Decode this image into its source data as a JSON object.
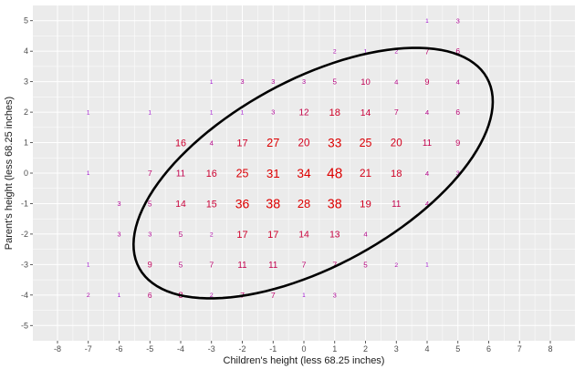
{
  "chart_data": {
    "type": "scatter",
    "subtype": "count-labels",
    "title": "",
    "xlabel": "Children's height (less 68.25 inches)",
    "ylabel": "Parent's height (less 68.25 inches)",
    "xlim": [
      -8.8,
      8.8
    ],
    "ylim": [
      -5.5,
      5.5
    ],
    "xticks": [
      -8,
      -7,
      -6,
      -5,
      -4,
      -3,
      -2,
      -1,
      0,
      1,
      2,
      3,
      4,
      5,
      6,
      7,
      8
    ],
    "yticks": [
      -5,
      -4,
      -3,
      -2,
      -1,
      0,
      1,
      2,
      3,
      4,
      5
    ],
    "grid": true,
    "panel_background": "#ebebeb",
    "grid_color": "#ffffff",
    "color_low": "#9900cc",
    "color_high": "#dd0000",
    "ellipse": {
      "center": [
        0.3,
        0.0
      ],
      "semi_axis_major": 6.45,
      "semi_axis_minor": 3.05,
      "angle_deg": 29,
      "color": "#000000"
    },
    "points": [
      {
        "x": 4,
        "y": 5,
        "n": 1
      },
      {
        "x": 5,
        "y": 5,
        "n": 3
      },
      {
        "x": 1,
        "y": 4,
        "n": 2
      },
      {
        "x": 2,
        "y": 4,
        "n": 1
      },
      {
        "x": 3,
        "y": 4,
        "n": 2
      },
      {
        "x": 4,
        "y": 4,
        "n": 7
      },
      {
        "x": 5,
        "y": 4,
        "n": 6
      },
      {
        "x": -3,
        "y": 3,
        "n": 1
      },
      {
        "x": -2,
        "y": 3,
        "n": 3
      },
      {
        "x": -1,
        "y": 3,
        "n": 3
      },
      {
        "x": 0,
        "y": 3,
        "n": 3
      },
      {
        "x": 1,
        "y": 3,
        "n": 5
      },
      {
        "x": 2,
        "y": 3,
        "n": 10
      },
      {
        "x": 3,
        "y": 3,
        "n": 4
      },
      {
        "x": 4,
        "y": 3,
        "n": 9
      },
      {
        "x": 5,
        "y": 3,
        "n": 4
      },
      {
        "x": -7,
        "y": 2,
        "n": 1
      },
      {
        "x": -5,
        "y": 2,
        "n": 1
      },
      {
        "x": -3,
        "y": 2,
        "n": 1
      },
      {
        "x": -2,
        "y": 2,
        "n": 1
      },
      {
        "x": -1,
        "y": 2,
        "n": 3
      },
      {
        "x": 0,
        "y": 2,
        "n": 12
      },
      {
        "x": 1,
        "y": 2,
        "n": 18
      },
      {
        "x": 2,
        "y": 2,
        "n": 14
      },
      {
        "x": 3,
        "y": 2,
        "n": 7
      },
      {
        "x": 4,
        "y": 2,
        "n": 4
      },
      {
        "x": 5,
        "y": 2,
        "n": 6
      },
      {
        "x": -4,
        "y": 1,
        "n": 16
      },
      {
        "x": -3,
        "y": 1,
        "n": 4
      },
      {
        "x": -2,
        "y": 1,
        "n": 17
      },
      {
        "x": -1,
        "y": 1,
        "n": 27
      },
      {
        "x": 0,
        "y": 1,
        "n": 20
      },
      {
        "x": 1,
        "y": 1,
        "n": 33
      },
      {
        "x": 2,
        "y": 1,
        "n": 25
      },
      {
        "x": 3,
        "y": 1,
        "n": 20
      },
      {
        "x": 4,
        "y": 1,
        "n": 11
      },
      {
        "x": 5,
        "y": 1,
        "n": 9
      },
      {
        "x": -7,
        "y": 0,
        "n": 1
      },
      {
        "x": -5,
        "y": 0,
        "n": 7
      },
      {
        "x": -4,
        "y": 0,
        "n": 11
      },
      {
        "x": -3,
        "y": 0,
        "n": 16
      },
      {
        "x": -2,
        "y": 0,
        "n": 25
      },
      {
        "x": -1,
        "y": 0,
        "n": 31
      },
      {
        "x": 0,
        "y": 0,
        "n": 34
      },
      {
        "x": 1,
        "y": 0,
        "n": 48
      },
      {
        "x": 2,
        "y": 0,
        "n": 21
      },
      {
        "x": 3,
        "y": 0,
        "n": 18
      },
      {
        "x": 4,
        "y": 0,
        "n": 4
      },
      {
        "x": 5,
        "y": 0,
        "n": 3
      },
      {
        "x": -6,
        "y": -1,
        "n": 3
      },
      {
        "x": -5,
        "y": -1,
        "n": 5
      },
      {
        "x": -4,
        "y": -1,
        "n": 14
      },
      {
        "x": -3,
        "y": -1,
        "n": 15
      },
      {
        "x": -2,
        "y": -1,
        "n": 36
      },
      {
        "x": -1,
        "y": -1,
        "n": 38
      },
      {
        "x": 0,
        "y": -1,
        "n": 28
      },
      {
        "x": 1,
        "y": -1,
        "n": 38
      },
      {
        "x": 2,
        "y": -1,
        "n": 19
      },
      {
        "x": 3,
        "y": -1,
        "n": 11
      },
      {
        "x": 4,
        "y": -1,
        "n": 4
      },
      {
        "x": -6,
        "y": -2,
        "n": 3
      },
      {
        "x": -5,
        "y": -2,
        "n": 3
      },
      {
        "x": -4,
        "y": -2,
        "n": 5
      },
      {
        "x": -3,
        "y": -2,
        "n": 2
      },
      {
        "x": -2,
        "y": -2,
        "n": 17
      },
      {
        "x": -1,
        "y": -2,
        "n": 17
      },
      {
        "x": 0,
        "y": -2,
        "n": 14
      },
      {
        "x": 1,
        "y": -2,
        "n": 13
      },
      {
        "x": 2,
        "y": -2,
        "n": 4
      },
      {
        "x": -7,
        "y": -3,
        "n": 1
      },
      {
        "x": -5,
        "y": -3,
        "n": 9
      },
      {
        "x": -4,
        "y": -3,
        "n": 5
      },
      {
        "x": -3,
        "y": -3,
        "n": 7
      },
      {
        "x": -2,
        "y": -3,
        "n": 11
      },
      {
        "x": -1,
        "y": -3,
        "n": 11
      },
      {
        "x": 0,
        "y": -3,
        "n": 7
      },
      {
        "x": 1,
        "y": -3,
        "n": 7
      },
      {
        "x": 2,
        "y": -3,
        "n": 5
      },
      {
        "x": 3,
        "y": -3,
        "n": 2
      },
      {
        "x": 4,
        "y": -3,
        "n": 1
      },
      {
        "x": -7,
        "y": -4,
        "n": 2
      },
      {
        "x": -6,
        "y": -4,
        "n": 1
      },
      {
        "x": -5,
        "y": -4,
        "n": 6
      },
      {
        "x": -4,
        "y": -4,
        "n": 8
      },
      {
        "x": -3,
        "y": -4,
        "n": 2
      },
      {
        "x": -2,
        "y": -4,
        "n": 7
      },
      {
        "x": -1,
        "y": -4,
        "n": 7
      },
      {
        "x": 0,
        "y": -4,
        "n": 1
      },
      {
        "x": 1,
        "y": -4,
        "n": 3
      }
    ]
  }
}
